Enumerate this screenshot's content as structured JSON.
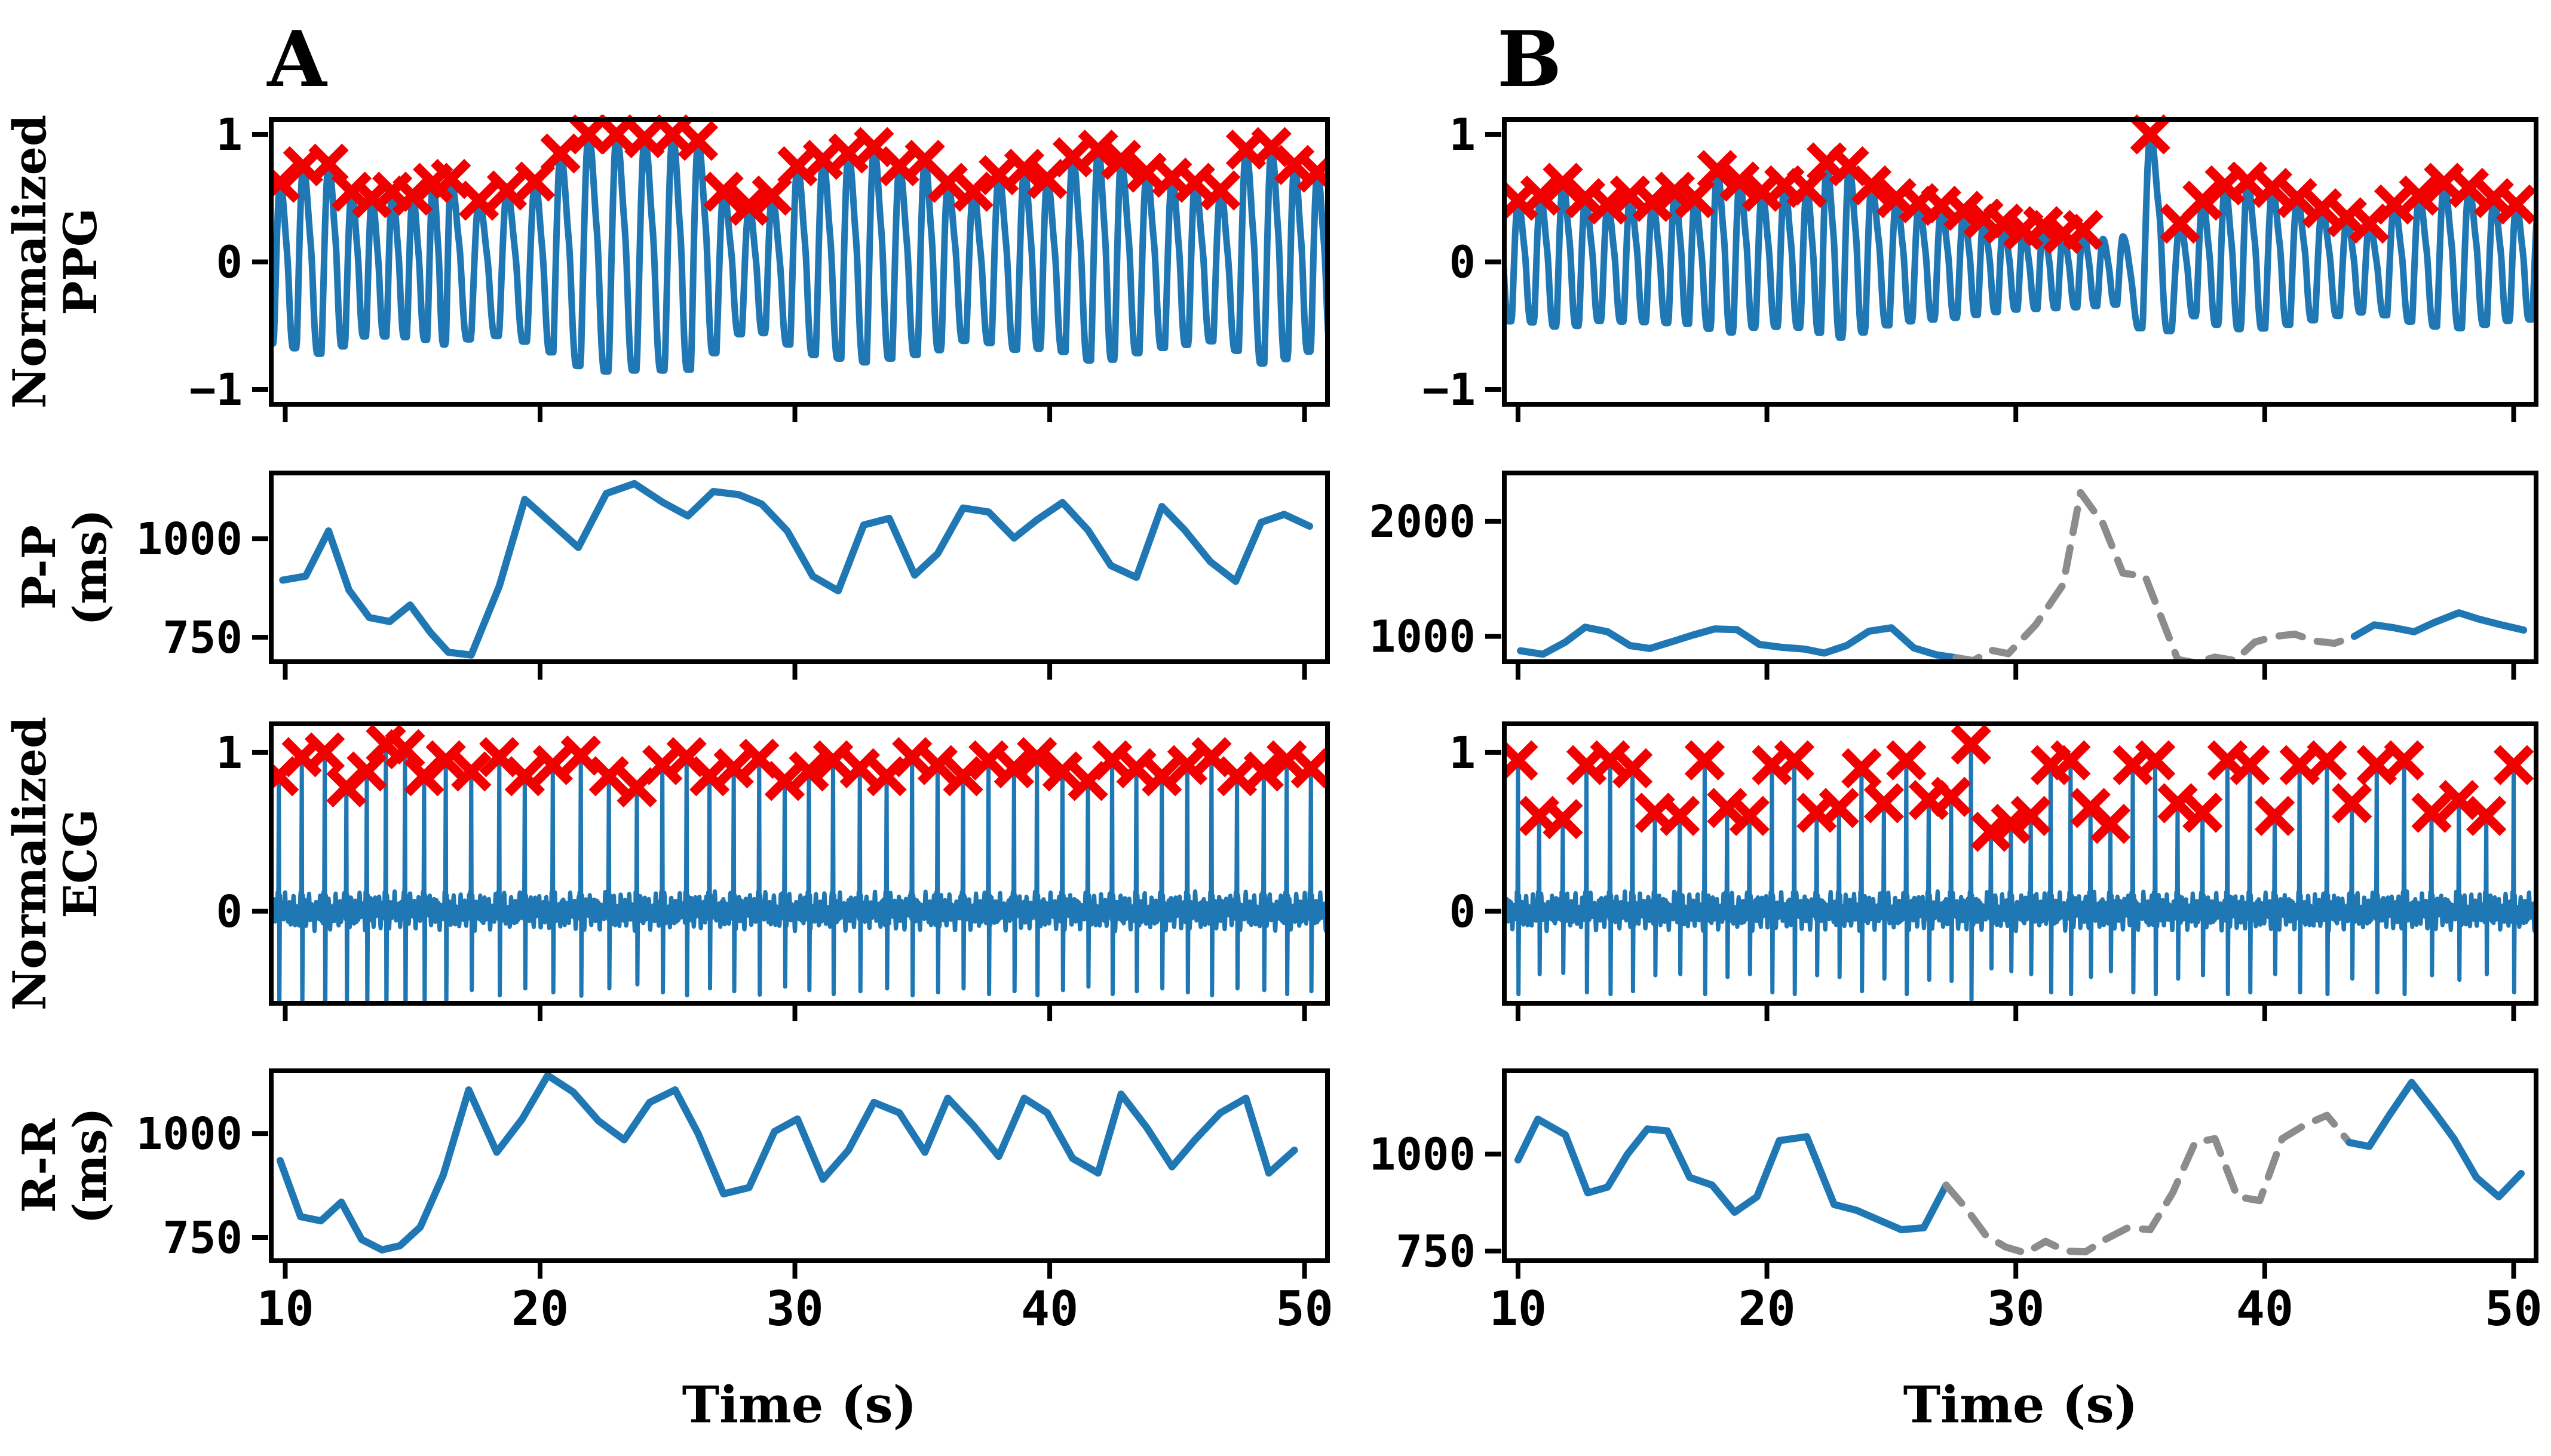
{
  "figure": {
    "kind": "physiological-signal-figure",
    "background": "#ffffff"
  },
  "colors": {
    "signal": "#1f77b4",
    "marker": "#f20000",
    "uncertain": "#8c8c8c",
    "axis": "#000000"
  },
  "labels": {
    "panel_a_title": "A",
    "panel_b_title": "B",
    "xlabel_a": "Time (s)",
    "xlabel_b": "Time (s)",
    "ylabel_ppg_1": "Normalized",
    "ylabel_ppg_2": "PPG",
    "ylabel_pp_1": "P-P",
    "ylabel_pp_2": "(ms)",
    "ylabel_ecg_1": "Normalized",
    "ylabel_ecg_2": "ECG",
    "ylabel_rr_1": "R-R",
    "ylabel_rr_2": "(ms)"
  },
  "axes": {
    "xlim": [
      9.45,
      50.9
    ],
    "x_ticks": [
      10,
      20,
      30,
      40,
      50
    ]
  },
  "chart_data": [
    {
      "id": "a-ppg",
      "panel": true,
      "type": "line",
      "column": "A",
      "row": "ppg",
      "kind": "ppg",
      "ylabel": "Normalized PPG",
      "ylim": [
        -1.117,
        1.117
      ],
      "yticks": [
        {
          "v": 1,
          "label": "1"
        },
        {
          "v": 0,
          "label": "0"
        },
        {
          "v": -1,
          "label": "−1"
        }
      ],
      "trough": [
        0.28,
        0.58
      ],
      "marker": "x",
      "beats_t": [
        9.8,
        10.7,
        11.7,
        12.6,
        13.4,
        14.2,
        15.0,
        15.8,
        16.5,
        17.6,
        18.7,
        19.8,
        20.8,
        21.9,
        23.0,
        24.1,
        25.2,
        26.2,
        27.2,
        28.2,
        29.1,
        30.1,
        31.1,
        32.1,
        33.1,
        34.1,
        35.1,
        36.0,
        37.0,
        38.0,
        39.0,
        39.9,
        40.9,
        41.9,
        42.8,
        43.8,
        44.8,
        45.7,
        46.7,
        47.7,
        48.7,
        49.6,
        50.5
      ],
      "beats_amp": [
        0.62,
        0.75,
        0.77,
        0.55,
        0.5,
        0.55,
        0.52,
        0.62,
        0.65,
        0.48,
        0.56,
        0.63,
        0.85,
        1.0,
        1.0,
        0.97,
        1.0,
        0.95,
        0.55,
        0.44,
        0.52,
        0.75,
        0.8,
        0.85,
        0.9,
        0.75,
        0.8,
        0.62,
        0.55,
        0.68,
        0.73,
        0.65,
        0.82,
        0.88,
        0.8,
        0.7,
        0.66,
        0.62,
        0.56,
        0.88,
        0.9,
        0.76,
        0.7
      ]
    },
    {
      "id": "a-pp",
      "panel": true,
      "type": "line",
      "column": "A",
      "row": "pp",
      "kind": "interval",
      "ylabel": "P-P (ms)",
      "ylim": [
        688,
        1167
      ],
      "yticks": [
        {
          "v": 1000,
          "label": "1000"
        },
        {
          "v": 750,
          "label": "750"
        }
      ],
      "segments": [
        {
          "style": "solid",
          "x": [
            9.9,
            10.8,
            11.7,
            12.5,
            13.3,
            14.1,
            14.9,
            15.7,
            16.4,
            17.3,
            18.4,
            19.4,
            20.4,
            21.5,
            22.6,
            23.7,
            24.8,
            25.8,
            26.8,
            27.8,
            28.7,
            29.7,
            30.7,
            31.7,
            32.7,
            33.7,
            34.7,
            35.6,
            36.6,
            37.6,
            38.6,
            39.5,
            40.5,
            41.5,
            42.4,
            43.4,
            44.4,
            45.3,
            46.3,
            47.3,
            48.3,
            49.2,
            50.2
          ],
          "y": [
            895,
            905,
            1020,
            870,
            800,
            790,
            832,
            762,
            712,
            705,
            880,
            1100,
            1042,
            978,
            1115,
            1140,
            1093,
            1058,
            1120,
            1112,
            1088,
            1020,
            905,
            868,
            1035,
            1052,
            908,
            962,
            1078,
            1068,
            1002,
            1048,
            1092,
            1022,
            932,
            902,
            1082,
            1022,
            942,
            892,
            1042,
            1062,
            1032
          ]
        }
      ]
    },
    {
      "id": "a-ecg",
      "panel": true,
      "type": "line",
      "column": "A",
      "row": "ecg",
      "kind": "ecg",
      "ylabel": "Normalized ECG",
      "ylim": [
        -0.58,
        1.18
      ],
      "yticks": [
        {
          "v": 1,
          "label": "1"
        },
        {
          "v": 0,
          "label": "0"
        }
      ],
      "deep_until": 17,
      "marker": "x",
      "beats_t": [
        9.75,
        10.65,
        11.55,
        12.4,
        13.2,
        13.95,
        14.7,
        15.45,
        16.3,
        17.3,
        18.4,
        19.4,
        20.5,
        21.6,
        22.7,
        23.8,
        24.8,
        25.75,
        26.65,
        27.6,
        28.6,
        29.6,
        30.55,
        31.5,
        32.55,
        33.6,
        34.6,
        35.6,
        36.6,
        37.6,
        38.6,
        39.5,
        40.5,
        41.5,
        42.45,
        43.4,
        44.4,
        45.4,
        46.35,
        47.35,
        48.4,
        49.3,
        50.25
      ],
      "beats_amp": [
        0.85,
        0.97,
        1.0,
        0.78,
        0.88,
        1.05,
        1.02,
        0.85,
        0.95,
        0.88,
        0.97,
        0.85,
        0.92,
        0.98,
        0.85,
        0.78,
        0.92,
        0.97,
        0.85,
        0.9,
        0.96,
        0.82,
        0.88,
        0.95,
        0.9,
        0.85,
        0.97,
        0.92,
        0.85,
        0.95,
        0.9,
        0.97,
        0.88,
        0.82,
        0.95,
        0.9,
        0.85,
        0.92,
        0.97,
        0.85,
        0.88,
        0.95,
        0.9
      ]
    },
    {
      "id": "a-rr",
      "panel": true,
      "type": "line",
      "column": "A",
      "row": "rr",
      "kind": "interval",
      "ylabel": "R-R (ms)",
      "ylim": [
        694,
        1151
      ],
      "show_xlabels": true,
      "yticks": [
        {
          "v": 1000,
          "label": "1000"
        },
        {
          "v": 750,
          "label": "750"
        }
      ],
      "segments": [
        {
          "style": "solid",
          "x": [
            9.8,
            10.6,
            11.4,
            12.2,
            13.0,
            13.8,
            14.5,
            15.3,
            16.2,
            17.2,
            18.3,
            19.3,
            20.3,
            21.3,
            22.3,
            23.3,
            24.3,
            25.3,
            26.2,
            27.2,
            28.2,
            29.2,
            30.1,
            31.1,
            32.1,
            33.1,
            34.1,
            35.1,
            36.0,
            37.0,
            38.0,
            39.0,
            39.9,
            40.9,
            41.9,
            42.8,
            43.8,
            44.8,
            45.7,
            46.7,
            47.7,
            48.6,
            49.6
          ],
          "y": [
            935,
            800,
            790,
            835,
            745,
            720,
            730,
            775,
            900,
            1105,
            955,
            1035,
            1140,
            1100,
            1030,
            985,
            1075,
            1105,
            1000,
            855,
            870,
            1005,
            1035,
            890,
            960,
            1075,
            1050,
            955,
            1085,
            1020,
            945,
            1085,
            1050,
            940,
            905,
            1095,
            1015,
            920,
            985,
            1050,
            1085,
            905,
            960
          ]
        }
      ]
    },
    {
      "id": "b-ppg",
      "panel": true,
      "type": "line",
      "column": "B",
      "row": "ppg",
      "kind": "ppg",
      "ylabel": "Normalized PPG",
      "ylim": [
        -1.117,
        1.117
      ],
      "yticks": [
        {
          "v": 1,
          "label": "1"
        },
        {
          "v": 0,
          "label": "0"
        },
        {
          "v": -1,
          "label": "−1"
        }
      ],
      "trough": [
        0.25,
        0.45
      ],
      "marker": "x",
      "unmarked": [
        27,
        28
      ],
      "beats_t": [
        10.0,
        10.9,
        11.8,
        12.7,
        13.6,
        14.5,
        15.4,
        16.3,
        17.1,
        18.0,
        18.9,
        19.8,
        20.7,
        21.6,
        22.4,
        23.3,
        24.2,
        25.2,
        26.1,
        27.0,
        27.9,
        28.7,
        29.5,
        30.3,
        31.1,
        31.9,
        32.7,
        33.5,
        34.3,
        35.4,
        36.6,
        37.5,
        38.4,
        39.3,
        40.3,
        41.3,
        42.3,
        43.3,
        44.2,
        45.2,
        46.2,
        47.2,
        48.2,
        49.2,
        50.1
      ],
      "beats_amp": [
        0.48,
        0.52,
        0.62,
        0.5,
        0.45,
        0.52,
        0.47,
        0.55,
        0.5,
        0.72,
        0.63,
        0.55,
        0.6,
        0.58,
        0.78,
        0.75,
        0.6,
        0.5,
        0.46,
        0.44,
        0.4,
        0.34,
        0.3,
        0.25,
        0.28,
        0.22,
        0.25,
        0.18,
        0.2,
        1.0,
        0.3,
        0.48,
        0.6,
        0.63,
        0.58,
        0.5,
        0.42,
        0.35,
        0.3,
        0.45,
        0.52,
        0.62,
        0.58,
        0.5,
        0.45
      ]
    },
    {
      "id": "b-pp",
      "panel": true,
      "type": "line",
      "column": "B",
      "row": "pp",
      "kind": "interval",
      "ylabel": "P-P (ms)",
      "ylim": [
        780,
        2420
      ],
      "yticks": [
        {
          "v": 2000,
          "label": "2000"
        },
        {
          "v": 1000,
          "label": "1000"
        }
      ],
      "segments": [
        {
          "style": "solid",
          "x": [
            10.1,
            11.0,
            11.9,
            12.7,
            13.6,
            14.5,
            15.3,
            16.2,
            17.0,
            17.9,
            18.8,
            19.7,
            20.6,
            21.5,
            22.3,
            23.2,
            24.1,
            25.0,
            25.9,
            26.8,
            27.6
          ],
          "y": [
            875,
            845,
            950,
            1080,
            1040,
            920,
            895,
            955,
            1010,
            1065,
            1058,
            930,
            905,
            890,
            855,
            920,
            1045,
            1075,
            900,
            840,
            815
          ]
        },
        {
          "style": "dashed",
          "x": [
            28.3,
            29.0,
            29.7,
            30.8,
            31.9,
            32.6,
            33.5,
            34.3,
            35.2,
            36.5,
            37.2,
            38.0,
            38.8,
            39.6,
            40.4,
            41.2,
            42.0,
            42.8,
            43.6
          ],
          "y": [
            790,
            880,
            850,
            1100,
            1450,
            2250,
            1980,
            1550,
            1520,
            800,
            770,
            820,
            790,
            950,
            1000,
            1020,
            960,
            940,
            1000
          ]
        },
        {
          "style": "solid",
          "x": [
            44.4,
            45.2,
            46.0,
            46.8,
            47.8,
            48.6,
            49.5,
            50.4
          ],
          "y": [
            1100,
            1075,
            1040,
            1120,
            1205,
            1150,
            1100,
            1055
          ]
        }
      ]
    },
    {
      "id": "b-ecg",
      "panel": true,
      "type": "line",
      "column": "B",
      "row": "ecg",
      "kind": "ecg",
      "ylabel": "Normalized ECG",
      "ylim": [
        -0.58,
        1.18
      ],
      "yticks": [
        {
          "v": 1,
          "label": "1"
        },
        {
          "v": 0,
          "label": "0"
        }
      ],
      "deep_until": 0,
      "marker": "x",
      "beats_t": [
        10.0,
        10.85,
        11.8,
        12.75,
        13.7,
        14.6,
        15.5,
        16.5,
        17.5,
        18.4,
        19.3,
        20.2,
        21.1,
        22.0,
        22.9,
        23.8,
        24.7,
        25.6,
        26.5,
        27.4,
        28.2,
        29.0,
        29.8,
        30.6,
        31.4,
        32.2,
        33.0,
        33.8,
        34.7,
        35.6,
        36.5,
        37.5,
        38.5,
        39.4,
        40.4,
        41.4,
        42.5,
        43.5,
        44.5,
        45.6,
        46.7,
        47.8,
        48.9,
        50.0
      ],
      "beats_amp": [
        0.95,
        0.6,
        0.58,
        0.92,
        0.95,
        0.9,
        0.62,
        0.6,
        0.95,
        0.65,
        0.6,
        0.92,
        0.95,
        0.62,
        0.65,
        0.9,
        0.68,
        0.95,
        0.7,
        0.72,
        1.05,
        0.5,
        0.55,
        0.6,
        0.92,
        0.95,
        0.65,
        0.55,
        0.92,
        0.95,
        0.68,
        0.62,
        0.95,
        0.92,
        0.6,
        0.92,
        0.95,
        0.68,
        0.92,
        0.95,
        0.62,
        0.7,
        0.6,
        0.92
      ]
    },
    {
      "id": "b-rr",
      "panel": true,
      "type": "line",
      "column": "B",
      "row": "rr",
      "kind": "interval",
      "ylabel": "R-R (ms)",
      "ylim": [
        725,
        1215
      ],
      "show_xlabels": true,
      "yticks": [
        {
          "v": 1000,
          "label": "1000"
        },
        {
          "v": 750,
          "label": "750"
        }
      ],
      "segments": [
        {
          "style": "solid",
          "x": [
            10.0,
            10.8,
            11.9,
            12.8,
            13.6,
            14.4,
            15.2,
            16.0,
            16.9,
            17.8,
            18.7,
            19.6,
            20.5,
            21.6,
            22.7,
            23.6,
            24.5,
            25.4,
            26.3,
            27.2
          ],
          "y": [
            985,
            1090,
            1050,
            900,
            915,
            1000,
            1065,
            1060,
            940,
            920,
            850,
            890,
            1035,
            1045,
            870,
            855,
            830,
            805,
            810,
            920
          ]
        },
        {
          "style": "dashed",
          "x": [
            28.0,
            28.8,
            29.6,
            30.4,
            31.2,
            32.0,
            32.8,
            33.6,
            34.5,
            35.4,
            36.3,
            37.2,
            38.0,
            38.9,
            39.8,
            40.7,
            41.6,
            42.5,
            43.4
          ],
          "y": [
            860,
            790,
            760,
            745,
            775,
            750,
            748,
            780,
            810,
            805,
            900,
            1030,
            1040,
            890,
            880,
            1040,
            1075,
            1100,
            1030
          ]
        },
        {
          "style": "solid",
          "x": [
            44.2,
            45.0,
            45.9,
            46.8,
            47.6,
            48.5,
            49.4,
            50.3
          ],
          "y": [
            1020,
            1100,
            1185,
            1110,
            1040,
            940,
            890,
            950
          ]
        }
      ]
    }
  ]
}
